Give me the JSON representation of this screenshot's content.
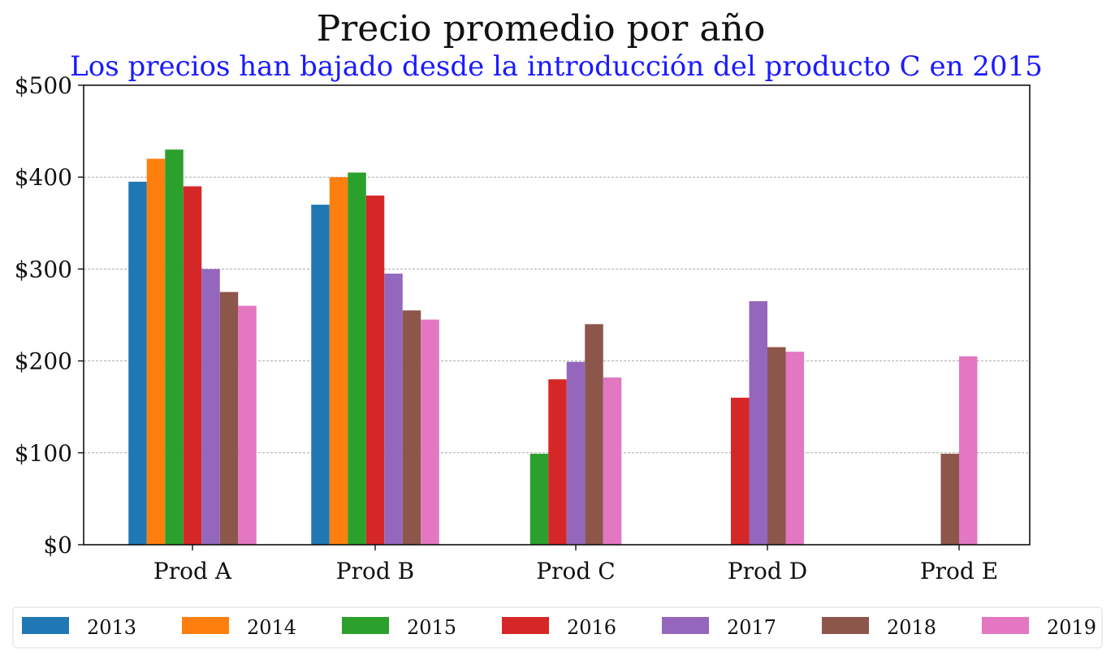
{
  "chart_data": {
    "type": "bar",
    "title": "Precio promedio por año",
    "subtitle": "Los precios han bajado desde la introducción del producto C en 2015",
    "categories": [
      "Prod A",
      "Prod B",
      "Prod C",
      "Prod D",
      "Prod E"
    ],
    "y_ticks": [
      "$0",
      "$100",
      "$200",
      "$300",
      "$400",
      "$500"
    ],
    "ylim": [
      0,
      500
    ],
    "grid": "horizontal dashed",
    "legend_placement": "bottom",
    "series": [
      {
        "name": "2013",
        "color": "#1f77b4",
        "values": [
          395,
          370,
          null,
          null,
          null
        ]
      },
      {
        "name": "2014",
        "color": "#ff7f0e",
        "values": [
          420,
          400,
          null,
          null,
          null
        ]
      },
      {
        "name": "2015",
        "color": "#2ca02c",
        "values": [
          430,
          405,
          99,
          null,
          null
        ]
      },
      {
        "name": "2016",
        "color": "#d62728",
        "values": [
          390,
          380,
          180,
          160,
          null
        ]
      },
      {
        "name": "2017",
        "color": "#9467bd",
        "values": [
          300,
          295,
          199,
          265,
          null
        ]
      },
      {
        "name": "2018",
        "color": "#8c564b",
        "values": [
          275,
          255,
          240,
          215,
          99
        ]
      },
      {
        "name": "2019",
        "color": "#e377c2",
        "values": [
          260,
          245,
          182,
          210,
          205
        ]
      }
    ]
  }
}
